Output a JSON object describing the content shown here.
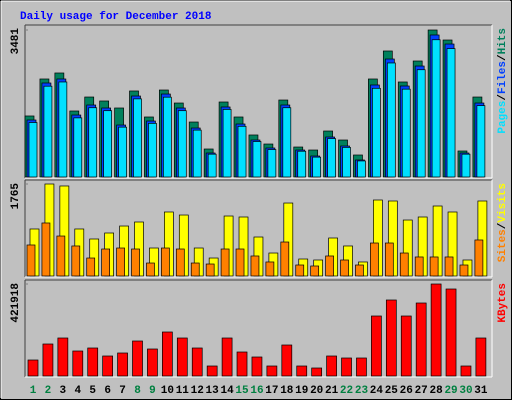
{
  "chart_data": {
    "type": "bar",
    "title": "Daily usage for December 2018",
    "categories": [
      "1",
      "2",
      "3",
      "4",
      "5",
      "6",
      "7",
      "8",
      "9",
      "10",
      "11",
      "12",
      "13",
      "14",
      "15",
      "16",
      "17",
      "18",
      "19",
      "20",
      "21",
      "22",
      "23",
      "24",
      "25",
      "26",
      "27",
      "28",
      "29",
      "30",
      "31"
    ],
    "category_colors": [
      "#008040",
      "#008040",
      "#000000",
      "#000000",
      "#000000",
      "#000000",
      "#000000",
      "#008040",
      "#008040",
      "#000000",
      "#000000",
      "#000000",
      "#000000",
      "#000000",
      "#008040",
      "#008040",
      "#000000",
      "#000000",
      "#000000",
      "#000000",
      "#000000",
      "#008040",
      "#008040",
      "#000000",
      "#000000",
      "#000000",
      "#000000",
      "#000000",
      "#008040",
      "#008040",
      "#000000"
    ],
    "separator": "/",
    "panels": [
      {
        "ylim": [
          0,
          3481
        ],
        "yticks": [
          3481
        ],
        "series": [
          {
            "name": "Hits",
            "color": "#00805c",
            "values": [
              1445,
              2321,
              2463,
              1563,
              1894,
              1800,
              1634,
              2037,
              1421,
              2060,
              1752,
              1302,
              663,
              1776,
              1421,
              995,
              781,
              1823,
              710,
              639,
              1089,
              876,
              521,
              2321,
              2984,
              2250,
              2747,
              3481,
              3244,
              616,
              1894
            ]
          },
          {
            "name": "Files",
            "color": "#0040ff",
            "values": [
              1350,
              2226,
              2321,
              1468,
              1705,
              1634,
              1231,
              1918,
              1326,
              1965,
              1634,
              1160,
              568,
              1658,
              1255,
              876,
              687,
              1705,
              639,
              497,
              947,
              734,
              403,
              2179,
              2794,
              2155,
              2628,
              3363,
              3149,
              568,
              1752
            ]
          },
          {
            "name": "Pages",
            "color": "#00e0ff",
            "values": [
              1290,
              2150,
              2250,
              1400,
              1640,
              1570,
              1180,
              1850,
              1270,
              1890,
              1570,
              1110,
              540,
              1600,
              1200,
              840,
              650,
              1640,
              610,
              470,
              910,
              700,
              380,
              2100,
              2700,
              2080,
              2540,
              3250,
              3040,
              540,
              1690
            ]
          }
        ]
      },
      {
        "ylim": [
          0,
          1765
        ],
        "yticks": [
          1765
        ],
        "series": [
          {
            "name": "Visits",
            "color": "#ffff00",
            "values": [
              902,
              1765,
              1727,
              902,
              710,
              825,
              959,
              1036,
              537,
              1228,
              1170,
              537,
              345,
              1151,
              1132,
              748,
              441,
              1400,
              326,
              307,
              729,
              576,
              269,
              1458,
              1439,
              1074,
              1132,
              1343,
              1228,
              307,
              1439
            ]
          },
          {
            "name": "Sites",
            "color": "#ff8000",
            "values": [
              595,
              1017,
              767,
              576,
              345,
              518,
              537,
              518,
              249,
              537,
              518,
              249,
              230,
              518,
              518,
              384,
              269,
              652,
              211,
              192,
              384,
              307,
              211,
              633,
              633,
              441,
              365,
              365,
              365,
              211,
              691
            ]
          }
        ]
      },
      {
        "ylim": [
          0,
          421918
        ],
        "yticks": [
          421918
        ],
        "series": [
          {
            "name": "KBytes",
            "color": "#ff0000",
            "values": [
              73376,
              146752,
              174268,
              114650,
              128408,
              91720,
              105478,
              160510,
              123822,
              201784,
              174268,
              128408,
              45860,
              174268,
              110064,
              87134,
              45860,
              142166,
              45860,
              36688,
              91720,
              82548,
              82548,
              275160,
              348536,
              275160,
              334778,
              421918,
              398982,
              45860,
              174268
            ]
          }
        ]
      }
    ]
  }
}
